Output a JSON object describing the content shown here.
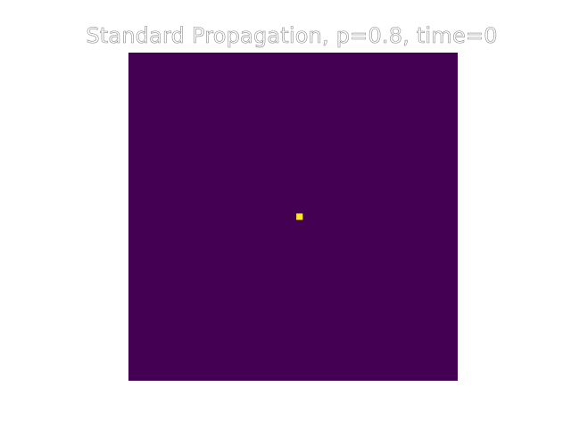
{
  "figure": {
    "title": "Standard Propagation, p=0.8, time=0"
  },
  "chart_data": {
    "type": "heatmap",
    "title": "Standard Propagation, p=0.8, time=0",
    "grid_size": [
      51,
      51
    ],
    "background_value": 0,
    "active_cells": [
      {
        "row": 25,
        "col": 26,
        "value": 1
      }
    ],
    "colors": {
      "empty": "#440154",
      "active": "#fde725"
    },
    "axes_visible": false
  }
}
